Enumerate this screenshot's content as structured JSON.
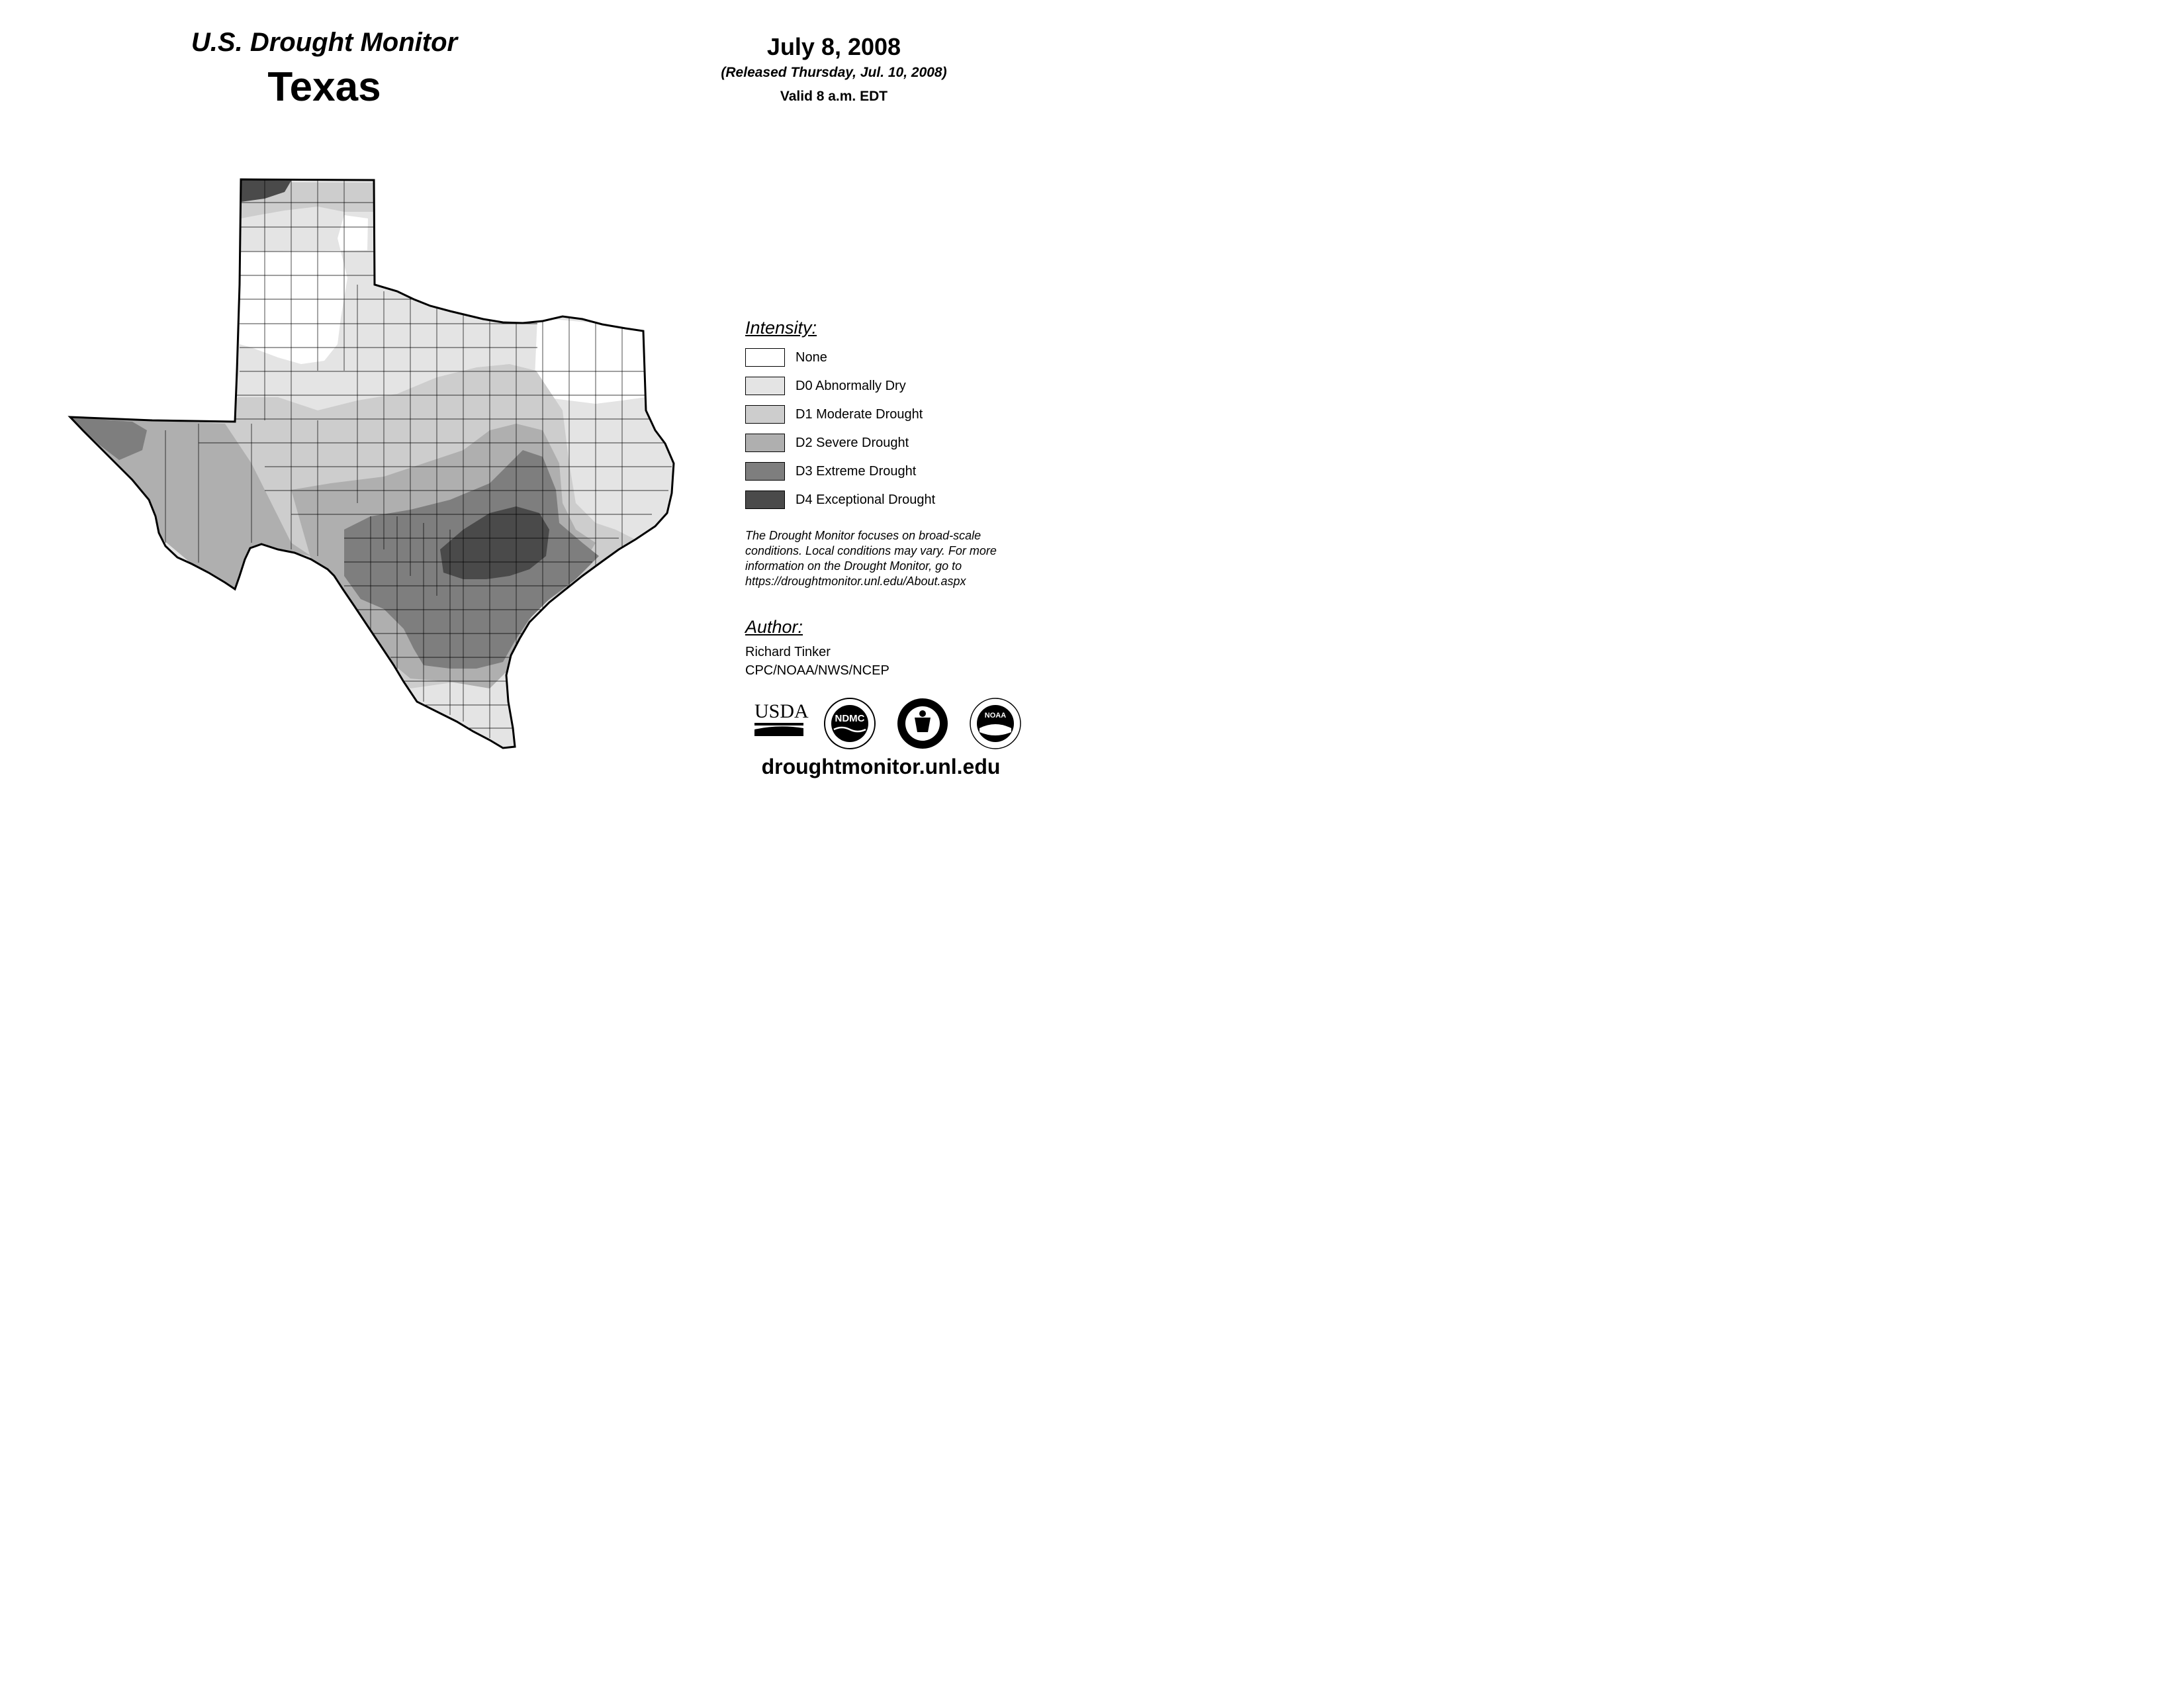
{
  "header": {
    "title": "U.S. Drought Monitor",
    "state": "Texas",
    "date": "July 8, 2008",
    "released": "(Released Thursday, Jul. 10, 2008)",
    "valid": "Valid 8 a.m. EDT"
  },
  "legend": {
    "title": "Intensity:",
    "items": [
      {
        "label": "None",
        "color": "#ffffff"
      },
      {
        "label": "D0 Abnormally Dry",
        "color": "#e4e4e4"
      },
      {
        "label": "D1 Moderate Drought",
        "color": "#cdcdcd"
      },
      {
        "label": "D2 Severe Drought",
        "color": "#afafaf"
      },
      {
        "label": "D3 Extreme Drought",
        "color": "#7e7e7e"
      },
      {
        "label": "D4 Exceptional Drought",
        "color": "#4a4a4a"
      }
    ]
  },
  "note": "The Drought Monitor focuses on broad-scale conditions. Local conditions may vary. For more information on the Drought Monitor, go to https://droughtmonitor.unl.edu/About.aspx",
  "author": {
    "title": "Author:",
    "name": "Richard Tinker",
    "org": "CPC/NOAA/NWS/NCEP"
  },
  "logos": {
    "usda": "USDA",
    "ndmc": "NDMC",
    "noaa": "NOAA",
    "doc_icon": "department-of-commerce-seal-icon"
  },
  "website": "droughtmonitor.unl.edu"
}
